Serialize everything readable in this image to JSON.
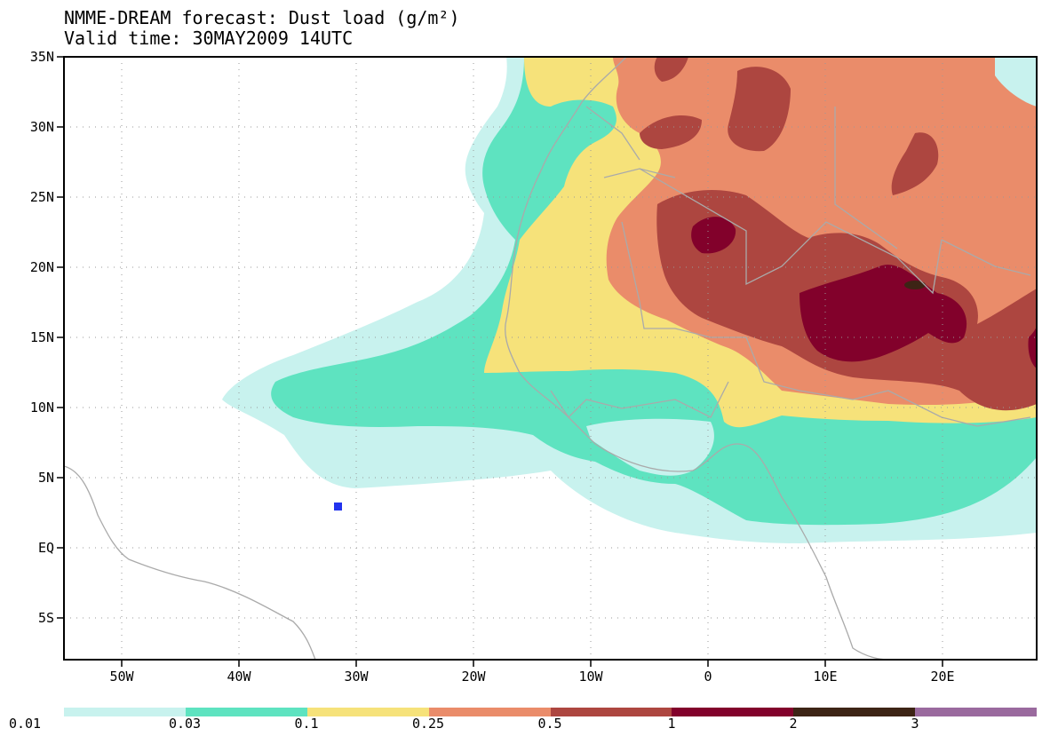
{
  "header": {
    "title": "NMME-DREAM forecast: Dust load (g/m²)",
    "valid_time": "Valid time: 30MAY2009 14UTC"
  },
  "axes": {
    "lat_labels": [
      "35N",
      "30N",
      "25N",
      "20N",
      "15N",
      "10N",
      "5N",
      "EQ",
      "5S"
    ],
    "lon_labels": [
      "50W",
      "40W",
      "30W",
      "20W",
      "10W",
      "0",
      "10E",
      "20E"
    ]
  },
  "legend": {
    "labels": [
      "0.01",
      "0.03",
      "0.1",
      "0.25",
      "0.5",
      "1",
      "2",
      "3"
    ],
    "colors": [
      "#c8f2ee",
      "#5ee3c0",
      "#f6e27a",
      "#ea8c6a",
      "#ad4640",
      "#82012b",
      "#3d2415",
      "#9a6a9e"
    ]
  },
  "map": {
    "land_line_color": "#aaaaaa",
    "station_marker_color": "#2233ee"
  }
}
